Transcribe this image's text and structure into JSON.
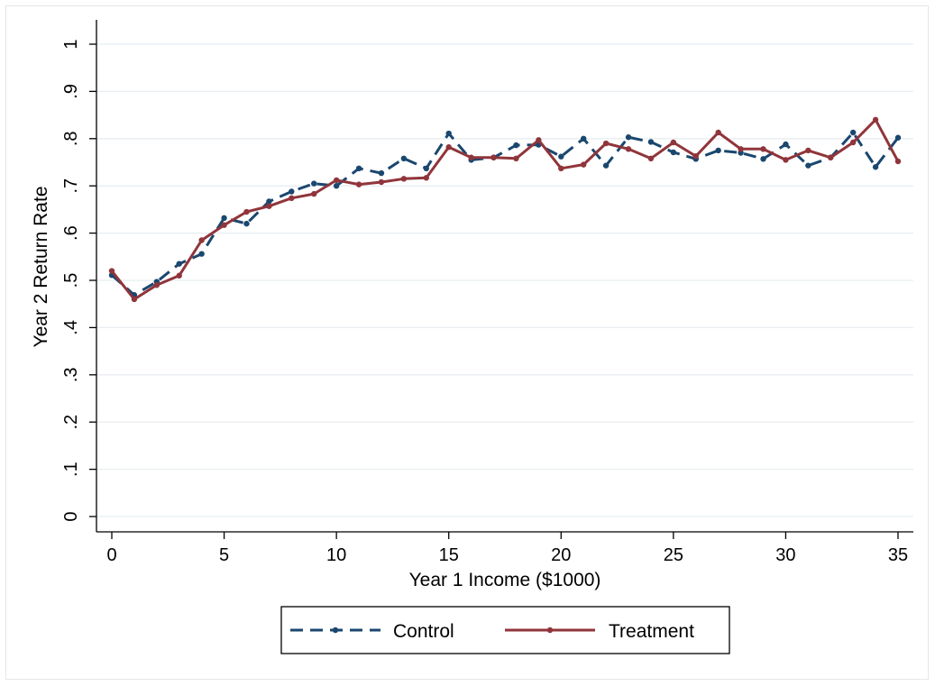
{
  "chart_data": {
    "type": "line",
    "title": "",
    "xlabel": "Year 1 Income ($1000)",
    "ylabel": "Year 2 Return Rate",
    "xlim": [
      0,
      35
    ],
    "ylim": [
      0,
      1
    ],
    "x_ticks": [
      {
        "value": 0,
        "label": "0"
      },
      {
        "value": 5,
        "label": "5"
      },
      {
        "value": 10,
        "label": "10"
      },
      {
        "value": 15,
        "label": "15"
      },
      {
        "value": 20,
        "label": "20"
      },
      {
        "value": 25,
        "label": "25"
      },
      {
        "value": 30,
        "label": "30"
      },
      {
        "value": 35,
        "label": "35"
      }
    ],
    "y_ticks": [
      {
        "value": 0,
        "label": "0"
      },
      {
        "value": 0.1,
        "label": ".1"
      },
      {
        "value": 0.2,
        "label": ".2"
      },
      {
        "value": 0.3,
        "label": ".3"
      },
      {
        "value": 0.4,
        "label": ".4"
      },
      {
        "value": 0.5,
        "label": ".5"
      },
      {
        "value": 0.6,
        "label": ".6"
      },
      {
        "value": 0.7,
        "label": ".7"
      },
      {
        "value": 0.8,
        "label": ".8"
      },
      {
        "value": 0.9,
        "label": ".9"
      },
      {
        "value": 1,
        "label": "1"
      }
    ],
    "grid": true,
    "legend_position": "bottom",
    "x": [
      0,
      1,
      2,
      3,
      4,
      5,
      6,
      7,
      8,
      9,
      10,
      11,
      12,
      13,
      14,
      15,
      16,
      17,
      18,
      19,
      20,
      21,
      22,
      23,
      24,
      25,
      26,
      27,
      28,
      29,
      30,
      31,
      32,
      33,
      34,
      35
    ],
    "series": [
      {
        "name": "Control",
        "color": "#1a476f",
        "style": "dashed",
        "values": [
          0.511,
          0.469,
          0.497,
          0.535,
          0.556,
          0.632,
          0.62,
          0.667,
          0.688,
          0.705,
          0.7,
          0.737,
          0.727,
          0.758,
          0.737,
          0.811,
          0.755,
          0.76,
          0.786,
          0.787,
          0.762,
          0.8,
          0.743,
          0.803,
          0.793,
          0.771,
          0.757,
          0.775,
          0.77,
          0.757,
          0.788,
          0.743,
          0.76,
          0.813,
          0.74,
          0.802
        ]
      },
      {
        "name": "Treatment",
        "color": "#90353b",
        "style": "solid",
        "values": [
          0.52,
          0.46,
          0.49,
          0.51,
          0.585,
          0.617,
          0.645,
          0.657,
          0.674,
          0.683,
          0.712,
          0.703,
          0.708,
          0.715,
          0.717,
          0.782,
          0.76,
          0.76,
          0.758,
          0.797,
          0.737,
          0.745,
          0.79,
          0.778,
          0.758,
          0.792,
          0.763,
          0.813,
          0.778,
          0.778,
          0.755,
          0.775,
          0.76,
          0.792,
          0.84,
          0.752
        ]
      }
    ]
  }
}
